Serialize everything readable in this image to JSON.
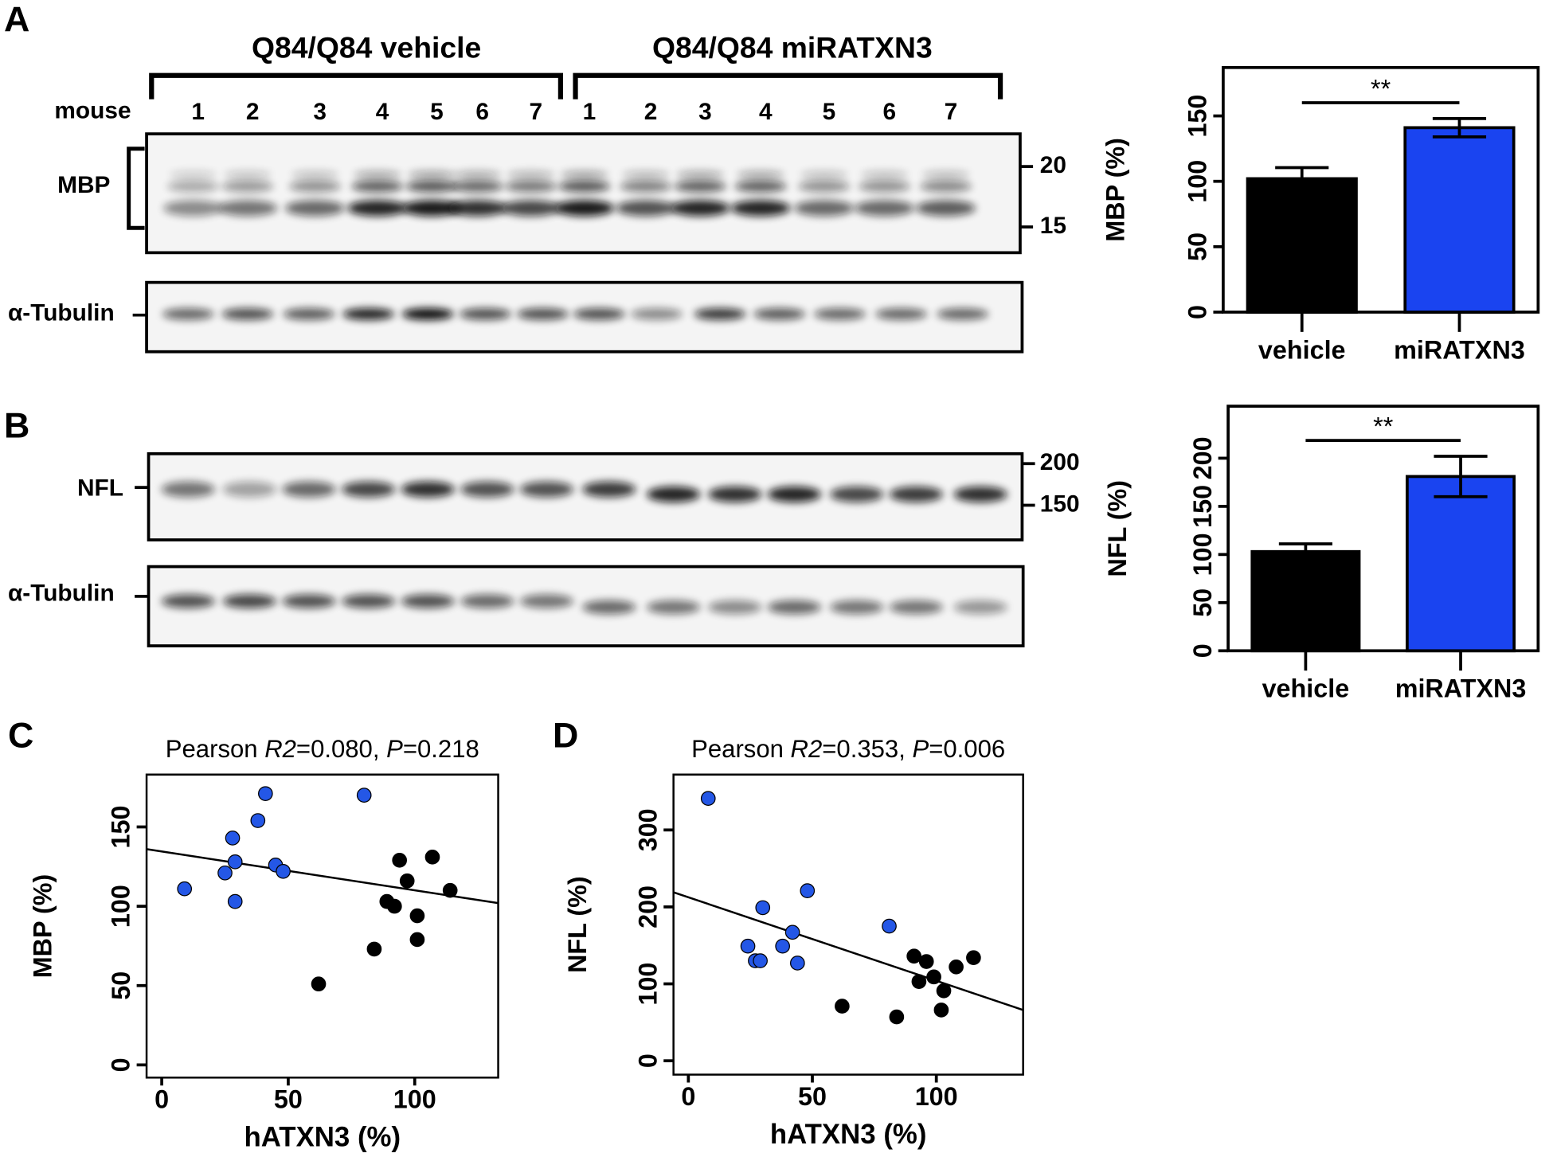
{
  "panel_labels": [
    "A",
    "B",
    "C",
    "D"
  ],
  "blots": {
    "groups": [
      "Q84/Q84 vehicle",
      "Q84/Q84 miRATXN3"
    ],
    "mouse_label": "mouse",
    "lanes": [
      "1",
      "2",
      "3",
      "4",
      "5",
      "6",
      "7",
      "1",
      "2",
      "3",
      "4",
      "5",
      "6",
      "7"
    ],
    "mbp": {
      "label": "MBP",
      "markers": [
        "20",
        "15"
      ]
    },
    "tubulin_a": {
      "label": "α-Tubulin"
    },
    "nfl": {
      "label": "NFL",
      "markers": [
        "200",
        "150"
      ]
    },
    "tubulin_b": {
      "label": "α-Tubulin"
    }
  },
  "chart_data": [
    {
      "type": "bar",
      "ylabel": "MBP (%)",
      "categories": [
        "vehicle",
        "miRATXN3"
      ],
      "values": [
        102,
        141
      ],
      "errors": [
        8.5,
        7
      ],
      "colors": [
        "#000000",
        "#1a44f0"
      ],
      "significance": "**",
      "ylim": [
        0,
        187
      ],
      "yticks": [
        0,
        50,
        100,
        150
      ]
    },
    {
      "type": "bar",
      "ylabel": "NFL (%)",
      "categories": [
        "vehicle",
        "miRATXN3"
      ],
      "values": [
        103,
        181
      ],
      "errors": [
        8,
        21
      ],
      "colors": [
        "#000000",
        "#1a44f0"
      ],
      "significance": "**",
      "ylim": [
        0,
        254
      ],
      "yticks": [
        0,
        50,
        100,
        150,
        200
      ]
    },
    {
      "type": "scatter",
      "annotation": [
        "Pearson ",
        "R2",
        "=0.080, ",
        "P",
        "=0.218"
      ],
      "xlabel": "hATXN3 (%)",
      "ylabel": "MBP (%)",
      "xlim": [
        -6,
        133
      ],
      "ylim": [
        -8,
        183
      ],
      "xticks": [
        0,
        50,
        100
      ],
      "yticks": [
        0,
        50,
        100,
        150
      ],
      "series": [
        {
          "color": "#2457e6",
          "x": [
            9,
            25,
            29,
            29,
            28,
            38,
            41,
            45,
            48,
            80
          ],
          "values": [
            111,
            121,
            128,
            103,
            143,
            154,
            171,
            126,
            122,
            170
          ]
        },
        {
          "color": "#000000",
          "x": [
            62,
            84,
            89,
            92,
            94,
            97,
            101,
            101,
            107,
            114
          ],
          "values": [
            51,
            73,
            103,
            100,
            129,
            116,
            94,
            79,
            131,
            110
          ]
        }
      ],
      "fit_line": {
        "x": [
          -6,
          133
        ],
        "y": [
          136,
          102
        ]
      }
    },
    {
      "type": "scatter",
      "annotation": [
        "Pearson ",
        "R2",
        "=0.353, ",
        "P",
        "=0.006"
      ],
      "xlabel": "hATXN3 (%)",
      "ylabel": "NFL (%)",
      "xlim": [
        -6,
        135
      ],
      "ylim": [
        -18,
        372
      ],
      "xticks": [
        0,
        50,
        100
      ],
      "yticks": [
        0,
        100,
        200,
        300
      ],
      "series": [
        {
          "color": "#2457e6",
          "x": [
            8,
            24,
            27,
            29,
            30,
            38,
            42,
            44,
            48,
            81
          ],
          "values": [
            341,
            149,
            130,
            130,
            199,
            149,
            167,
            127,
            221,
            175
          ]
        },
        {
          "color": "#000000",
          "x": [
            62,
            84,
            91,
            93,
            96,
            99,
            103,
            102,
            108,
            115
          ],
          "values": [
            71,
            57,
            136,
            103,
            129,
            109,
            91,
            66,
            122,
            134
          ]
        }
      ],
      "fit_line": {
        "x": [
          -6,
          135
        ],
        "y": [
          219,
          66
        ]
      }
    }
  ]
}
